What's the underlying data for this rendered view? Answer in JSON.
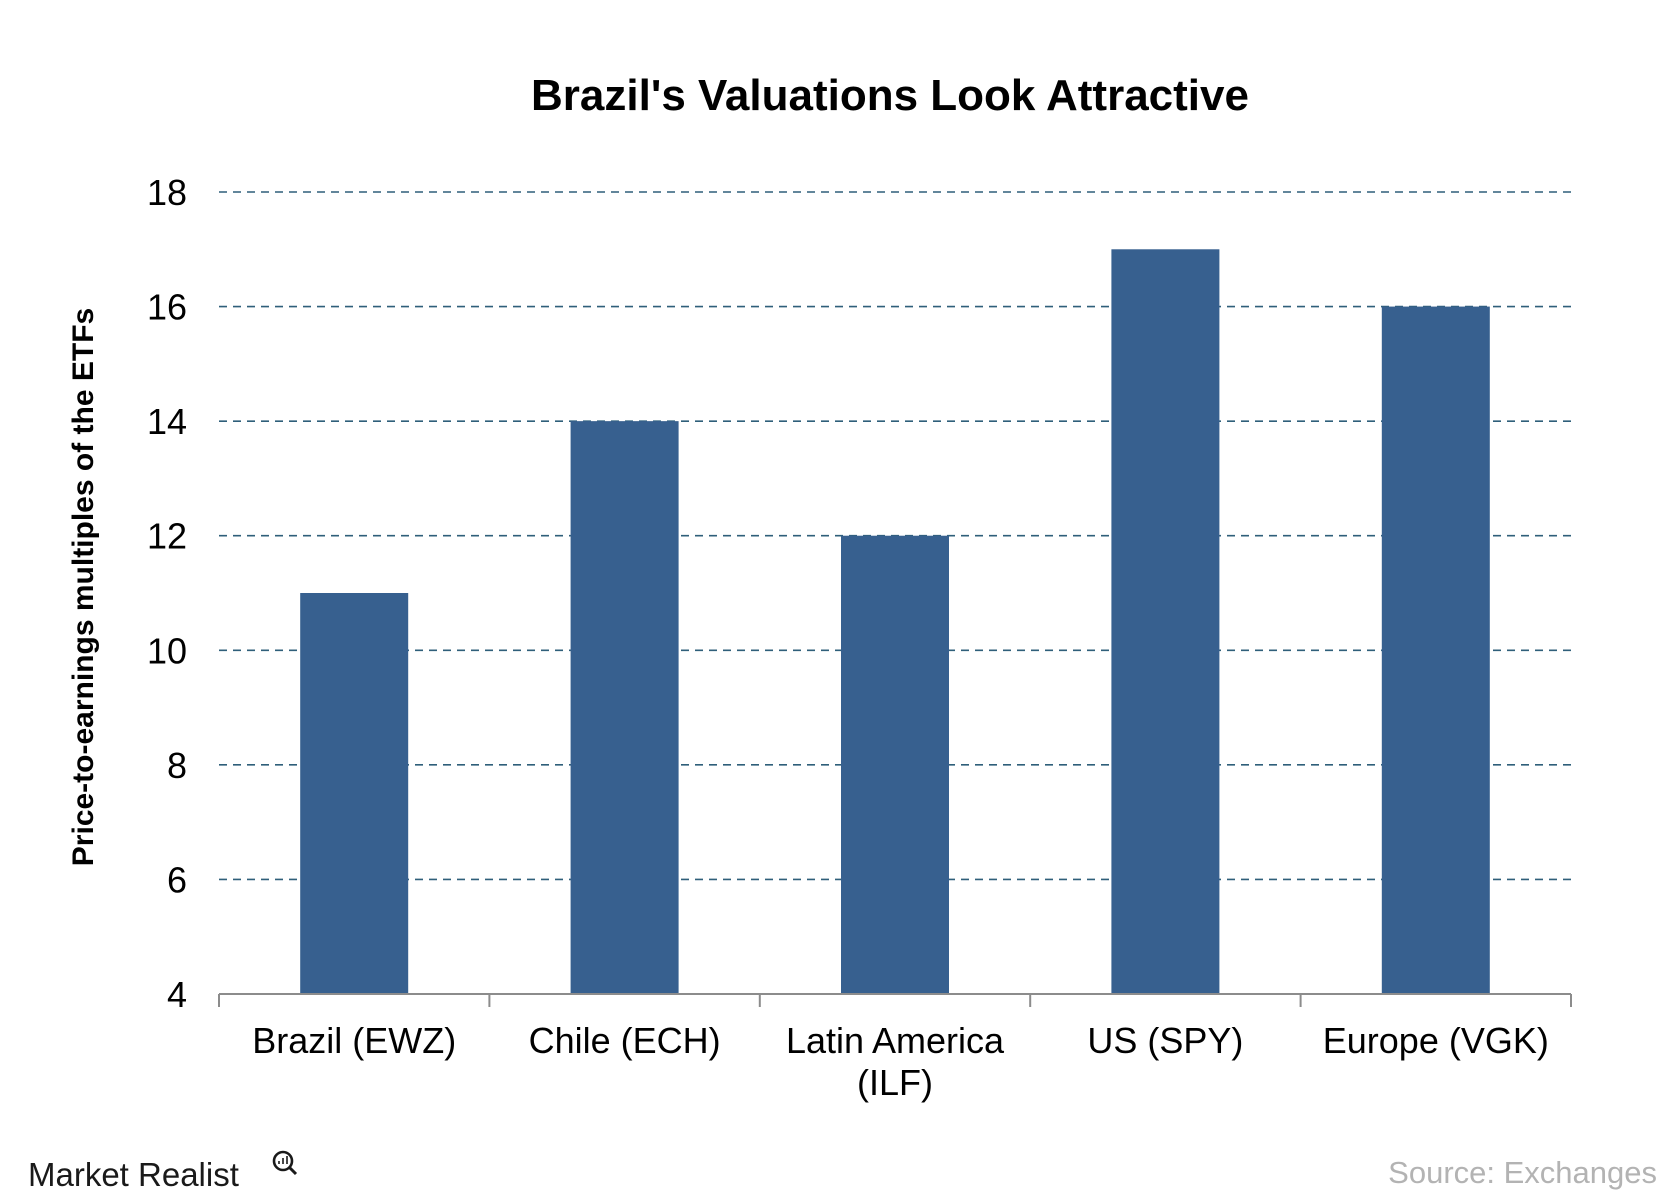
{
  "chart_data": {
    "type": "bar",
    "title": "Brazil's Valuations Look Attractive",
    "ylabel": "Price-to-earnings multiples of the ETFs",
    "xlabel": "",
    "categories": [
      [
        "Brazil (EWZ)"
      ],
      [
        "Chile (ECH)"
      ],
      [
        "Latin America",
        "(ILF)"
      ],
      [
        "US (SPY)"
      ],
      [
        "Europe (VGK)"
      ]
    ],
    "values": [
      11,
      14,
      12,
      17,
      16
    ],
    "ylim": [
      4,
      18
    ],
    "yticks": [
      "4",
      "6",
      "8",
      "10",
      "12",
      "14",
      "16",
      "18"
    ],
    "grid": true,
    "legend": "none",
    "bar_color": "#37608f"
  },
  "footer": {
    "brand": "Market Realist",
    "source": "Source: Exchanges"
  }
}
